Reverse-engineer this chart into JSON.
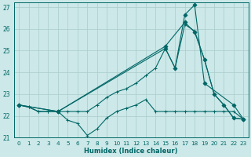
{
  "background_color": "#cce8e8",
  "grid_color": "#aacccc",
  "line_color": "#006666",
  "xlabel": "Humidex (Indice chaleur)",
  "xlim": [
    -0.5,
    23.5
  ],
  "ylim": [
    21,
    27.2
  ],
  "yticks": [
    21,
    22,
    23,
    24,
    25,
    26,
    27
  ],
  "xticks": [
    0,
    1,
    2,
    3,
    4,
    5,
    6,
    7,
    8,
    9,
    10,
    11,
    12,
    13,
    14,
    15,
    16,
    17,
    18,
    19,
    20,
    21,
    22,
    23
  ],
  "series1_x": [
    0,
    1,
    2,
    3,
    4,
    5,
    6,
    7,
    8,
    9,
    10,
    11,
    12,
    13,
    14,
    15,
    16,
    17,
    18,
    19,
    20,
    21,
    22,
    23
  ],
  "series1_y": [
    22.5,
    22.4,
    22.2,
    22.2,
    22.2,
    21.8,
    21.65,
    21.1,
    21.4,
    21.9,
    22.2,
    22.35,
    22.5,
    22.75,
    22.2,
    22.2,
    22.2,
    22.2,
    22.2,
    22.2,
    22.2,
    22.2,
    22.2,
    21.85
  ],
  "series2_x": [
    0,
    1,
    2,
    3,
    4,
    5,
    6,
    7,
    8,
    9,
    10,
    11,
    12,
    13,
    14,
    15,
    16,
    17,
    18,
    19,
    20,
    21,
    22,
    23
  ],
  "series2_y": [
    22.5,
    22.4,
    22.2,
    22.2,
    22.2,
    22.2,
    22.2,
    22.2,
    22.5,
    22.85,
    23.1,
    23.25,
    23.5,
    23.85,
    24.2,
    25.1,
    24.2,
    26.2,
    25.9,
    24.6,
    23.0,
    22.5,
    21.9,
    21.85
  ],
  "series3_x": [
    0,
    4,
    15,
    17,
    18,
    19,
    20,
    21,
    22,
    23
  ],
  "series3_y": [
    22.5,
    22.2,
    25.2,
    26.3,
    25.85,
    24.6,
    23.0,
    22.5,
    21.9,
    21.85
  ],
  "series4_x": [
    0,
    4,
    15,
    16,
    17,
    18,
    19,
    22,
    23
  ],
  "series4_y": [
    22.5,
    22.2,
    25.1,
    24.2,
    26.65,
    27.1,
    23.5,
    22.5,
    21.85
  ]
}
